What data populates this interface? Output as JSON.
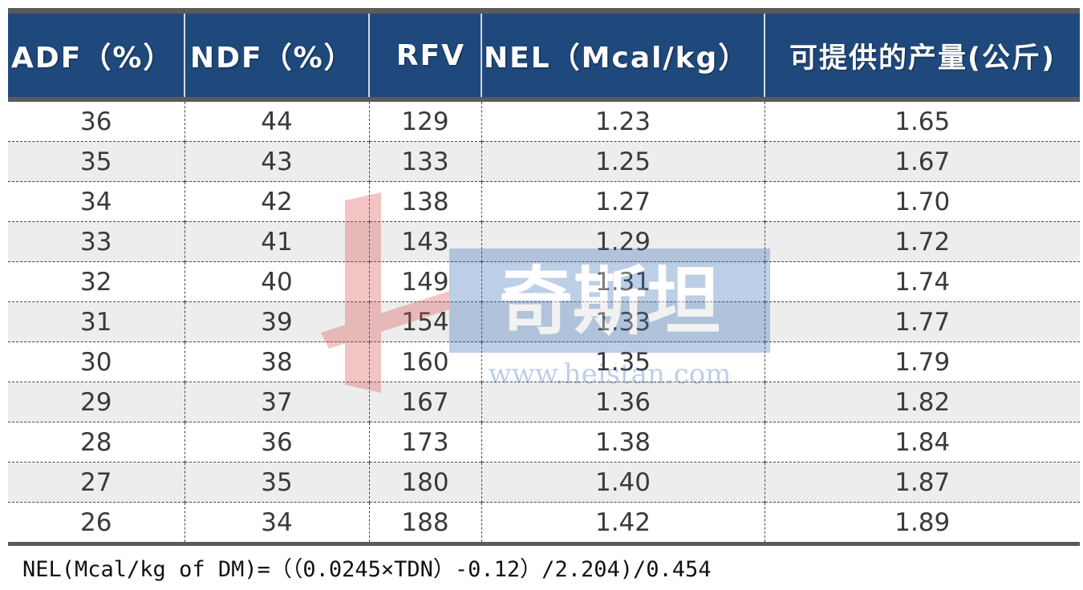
{
  "table": {
    "headers": [
      "ADF（%）",
      "NDF（%）",
      "RFV",
      "NEL（Mcal/kg）",
      "可提供的产量(公斤)"
    ],
    "rows": [
      [
        "36",
        "44",
        "129",
        "1.23",
        "1.65"
      ],
      [
        "35",
        "43",
        "133",
        "1.25",
        "1.67"
      ],
      [
        "34",
        "42",
        "138",
        "1.27",
        "1.70"
      ],
      [
        "33",
        "41",
        "143",
        "1.29",
        "1.72"
      ],
      [
        "32",
        "40",
        "149",
        "1.31",
        "1.74"
      ],
      [
        "31",
        "39",
        "154",
        "1.33",
        "1.77"
      ],
      [
        "30",
        "38",
        "160",
        "1.35",
        "1.79"
      ],
      [
        "29",
        "37",
        "167",
        "1.36",
        "1.82"
      ],
      [
        "28",
        "36",
        "173",
        "1.38",
        "1.84"
      ],
      [
        "27",
        "35",
        "180",
        "1.40",
        "1.87"
      ],
      [
        "26",
        "34",
        "188",
        "1.42",
        "1.89"
      ]
    ]
  },
  "watermark": {
    "brand": "奇斯坦",
    "url": "www.heistan.com",
    "colors": {
      "red": "#d9534f",
      "blue": "#3b6fb6"
    }
  },
  "footer": {
    "formula": "NEL(Mcal/kg of DM)=（（0.0245×TDN）-0.12）/2.204)/0.454"
  },
  "colors": {
    "header_bg": "#1f497d",
    "header_text": "#ffffff",
    "row_alt": "#ededed",
    "rule": "#5a5a5a"
  }
}
